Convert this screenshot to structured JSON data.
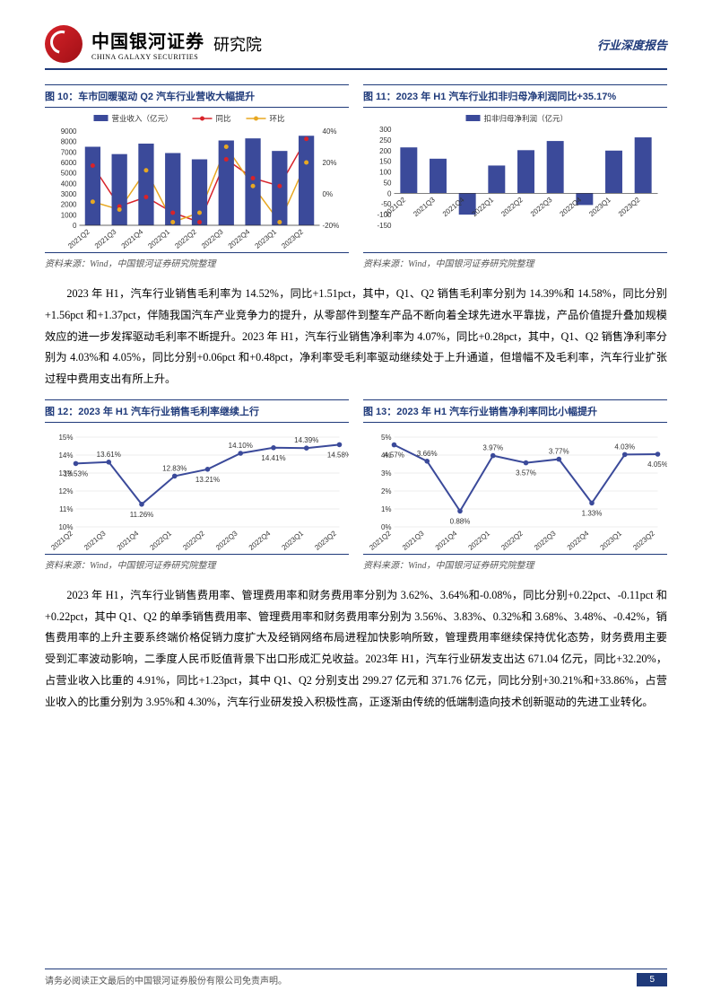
{
  "header": {
    "brand_cn": "中国银河证券",
    "brand_en": "CHINA GALAXY SECURITIES",
    "institute": "研究院",
    "doc_type": "行业深度报告"
  },
  "chart10": {
    "title": "图 10：车市回暖驱动 Q2 汽车行业营收大幅提升",
    "type": "bar+line",
    "categories": [
      "2021Q2",
      "2021Q3",
      "2021Q4",
      "2022Q1",
      "2022Q2",
      "2022Q3",
      "2022Q4",
      "2023Q1",
      "2023Q2"
    ],
    "bar_values": [
      7500,
      6800,
      7800,
      6900,
      6300,
      8100,
      8300,
      7100,
      8550
    ],
    "line1_values": [
      18,
      -8,
      -2,
      -12,
      -18,
      22,
      10,
      5,
      35
    ],
    "line2_values": [
      -5,
      -10,
      15,
      -18,
      -12,
      30,
      5,
      -18,
      20
    ],
    "bar_color": "#3b4a9a",
    "line1_color": "#d8232a",
    "line2_color": "#e8a822",
    "ylim_left": [
      0,
      9000
    ],
    "ytick_left": [
      0,
      1000,
      2000,
      3000,
      4000,
      5000,
      6000,
      7000,
      8000,
      9000
    ],
    "ylim_right": [
      -20,
      40
    ],
    "ytick_right": [
      -20,
      0,
      20,
      40
    ],
    "legend": [
      "营业收入（亿元）",
      "同比",
      "环比"
    ],
    "source": "资料来源：Wind，中国银河证券研究院整理"
  },
  "chart11": {
    "title": "图 11：2023 年 H1 汽车行业扣非归母净利润同比+35.17%",
    "type": "bar",
    "categories": [
      "2021Q2",
      "2021Q3",
      "2021Q4",
      "2022Q1",
      "2022Q2",
      "2022Q3",
      "2022Q4",
      "2023Q1",
      "2023Q2"
    ],
    "values": [
      215,
      162,
      -100,
      130,
      202,
      245,
      -55,
      200,
      262
    ],
    "bar_color": "#3b4a9a",
    "ylim": [
      -150,
      300
    ],
    "ytick": [
      -150,
      -100,
      -50,
      0,
      50,
      100,
      150,
      200,
      250,
      300
    ],
    "legend": [
      "扣非归母净利润（亿元）"
    ],
    "source": "资料来源：Wind，中国银河证券研究院整理"
  },
  "para1": "2023 年 H1，汽车行业销售毛利率为 14.52%，同比+1.51pct，其中，Q1、Q2 销售毛利率分别为 14.39%和 14.58%，同比分别+1.56pct 和+1.37pct，伴随我国汽车产业竞争力的提升，从零部件到整车产品不断向着全球先进水平靠拢，产品价值提升叠加规模效应的进一步发挥驱动毛利率不断提升。2023 年 H1，汽车行业销售净利率为 4.07%，同比+0.28pct，其中，Q1、Q2 销售净利率分别为 4.03%和 4.05%，同比分别+0.06pct 和+0.48pct，净利率受毛利率驱动继续处于上升通道，但增幅不及毛利率，汽车行业扩张过程中费用支出有所上升。",
  "chart12": {
    "title": "图 12：2023 年 H1 汽车行业销售毛利率继续上行",
    "type": "line",
    "categories": [
      "2021Q2",
      "2021Q3",
      "2021Q4",
      "2022Q1",
      "2022Q2",
      "2022Q3",
      "2022Q4",
      "2023Q1",
      "2023Q2"
    ],
    "values": [
      13.53,
      13.61,
      11.26,
      12.83,
      13.21,
      14.1,
      14.41,
      14.39,
      14.58
    ],
    "line_color": "#3b4a9a",
    "ylim": [
      10,
      15
    ],
    "ytick": [
      10,
      11,
      12,
      13,
      14,
      15
    ],
    "source": "资料来源：Wind，中国银河证券研究院整理"
  },
  "chart13": {
    "title": "图 13：2023 年 H1 汽车行业销售净利率同比小幅提升",
    "type": "line",
    "categories": [
      "2021Q2",
      "2021Q3",
      "2021Q4",
      "2022Q1",
      "2022Q2",
      "2022Q3",
      "2022Q4",
      "2023Q1",
      "2023Q2"
    ],
    "values": [
      4.57,
      3.66,
      0.88,
      3.97,
      3.57,
      3.77,
      1.33,
      4.03,
      4.05
    ],
    "line_color": "#3b4a9a",
    "ylim": [
      0,
      5
    ],
    "ytick": [
      0,
      1,
      2,
      3,
      4,
      5
    ],
    "source": "资料来源：Wind，中国银河证券研究院整理"
  },
  "para2": "2023 年 H1，汽车行业销售费用率、管理费用率和财务费用率分别为 3.62%、3.64%和-0.08%，同比分别+0.22pct、-0.11pct 和+0.22pct，其中 Q1、Q2 的单季销售费用率、管理费用率和财务费用率分别为 3.56%、3.83%、0.32%和 3.68%、3.48%、-0.42%，销售费用率的上升主要系终端价格促销力度扩大及经销网络布局进程加快影响所致，管理费用率继续保持优化态势，财务费用主要受到汇率波动影响，二季度人民币贬值背景下出口形成汇兑收益。2023年 H1，汽车行业研发支出达 671.04 亿元，同比+32.20%，占营业收入比重的 4.91%，同比+1.23pct，其中 Q1、Q2 分别支出 299.27 亿元和 371.76 亿元，同比分别+30.21%和+33.86%，占营业收入的比重分别为 3.95%和 4.30%，汽车行业研发投入积极性高，正逐渐由传统的低端制造向技术创新驱动的先进工业转化。",
  "footer": {
    "disclaimer": "请务必阅读正文最后的中国银河证券股份有限公司免责声明。",
    "page": "5"
  }
}
